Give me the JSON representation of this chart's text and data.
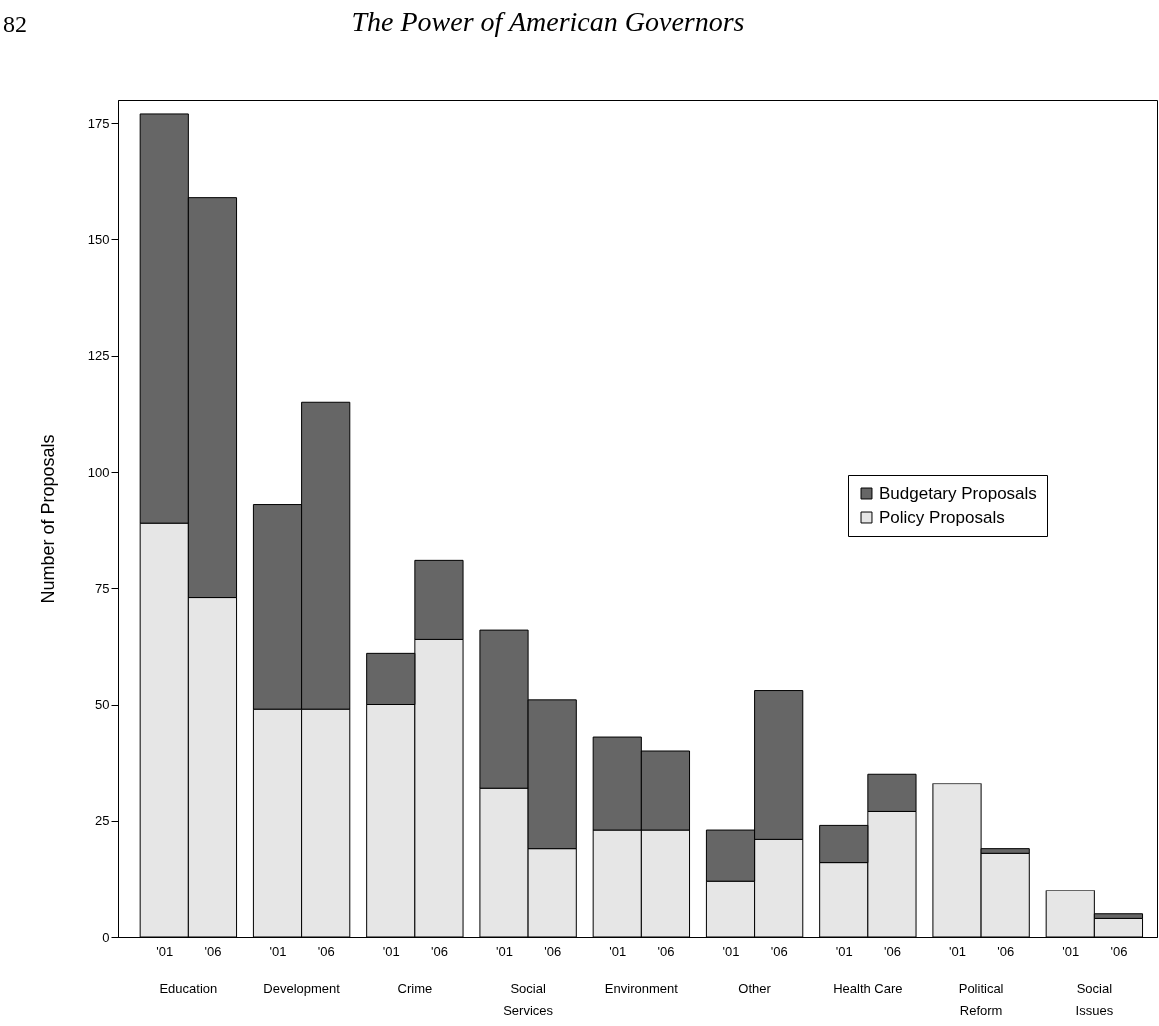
{
  "chart_data": {
    "type": "bar",
    "title": "The Power of American Governors",
    "ylabel": "Number of Proposals",
    "stacked": true,
    "legend": "right",
    "grid": false,
    "categories": [
      "'01",
      "'06",
      "'01",
      "'06",
      "'01",
      "'06",
      "'01",
      "'06",
      "'01",
      "'06",
      "'01",
      "'06",
      "'01",
      "'06",
      "'01",
      "'06",
      "'01",
      "'06"
    ],
    "annotations": [
      "82",
      "Education",
      "Development",
      "Crime",
      "Social\nServices",
      "Environment",
      "Other",
      "Health Care",
      "Political\nReform",
      "Social\nIssues"
    ],
    "ylim": [
      0,
      180
    ],
    "yticks": [
      0,
      25,
      50,
      75,
      100,
      125,
      150,
      175
    ],
    "series": [
      {
        "name": "Policy Proposals",
        "color": "#e6e6e6",
        "values": [
          89,
          73,
          49,
          49,
          50,
          64,
          32,
          19,
          23,
          23,
          12,
          21,
          16,
          27,
          33,
          18,
          10,
          4
        ]
      },
      {
        "name": "Budgetary Proposals",
        "color": "#666666",
        "values": [
          88,
          86,
          44,
          66,
          11,
          17,
          34,
          32,
          20,
          17,
          11,
          32,
          8,
          8,
          0,
          1,
          0,
          1
        ]
      }
    ]
  }
}
